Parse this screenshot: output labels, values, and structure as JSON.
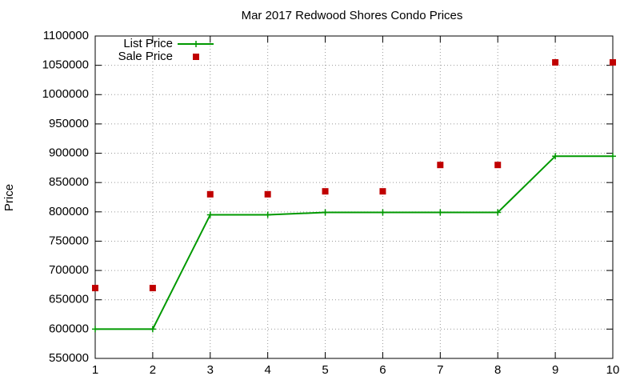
{
  "chart_data": {
    "type": "line",
    "title": "Mar 2017 Redwood Shores Condo Prices",
    "ylabel": "Price",
    "x": [
      1,
      2,
      3,
      4,
      5,
      6,
      7,
      8,
      9,
      10
    ],
    "series": [
      {
        "name": "List Price",
        "color": "#009900",
        "style": "linespoints",
        "values": [
          600000,
          600000,
          795000,
          795000,
          799000,
          799000,
          799000,
          799000,
          895000,
          895000
        ]
      },
      {
        "name": "Sale Price",
        "color": "#c00000",
        "style": "points",
        "values": [
          670000,
          670000,
          830000,
          830000,
          835000,
          835000,
          880000,
          880000,
          1055000,
          1055000
        ]
      }
    ],
    "xlim": [
      1,
      10
    ],
    "xticks": [
      1,
      2,
      3,
      4,
      5,
      6,
      7,
      8,
      9,
      10
    ],
    "ylim": [
      550000,
      1100000
    ],
    "yticks": [
      550000,
      600000,
      650000,
      700000,
      750000,
      800000,
      850000,
      900000,
      950000,
      1000000,
      1050000,
      1100000
    ],
    "grid": true,
    "legend": "top-left"
  }
}
